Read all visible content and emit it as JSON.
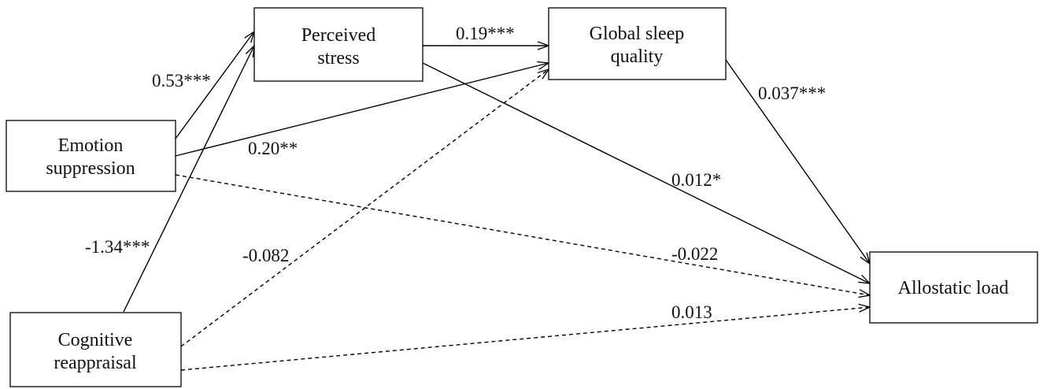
{
  "nodes": {
    "perceived_stress": {
      "lines": [
        "Perceived",
        "stress"
      ]
    },
    "global_sleep_quality": {
      "lines": [
        "Global sleep",
        "quality"
      ]
    },
    "emotion_suppression": {
      "lines": [
        "Emotion",
        "suppression"
      ]
    },
    "cognitive_reappraisal": {
      "lines": [
        "Cognitive",
        "reappraisal"
      ]
    },
    "allostatic_load": {
      "lines": [
        "Allostatic load"
      ]
    }
  },
  "paths": {
    "es_to_ps": "0.53***",
    "ps_to_gsq": "0.19***",
    "gsq_to_al": "0.037***",
    "es_to_gsq": "0.20**",
    "ps_to_al": "0.012*",
    "cr_to_ps": "-1.34***",
    "cr_to_gsq": "-0.082",
    "es_to_al": "-0.022",
    "cr_to_al": "0.013"
  }
}
